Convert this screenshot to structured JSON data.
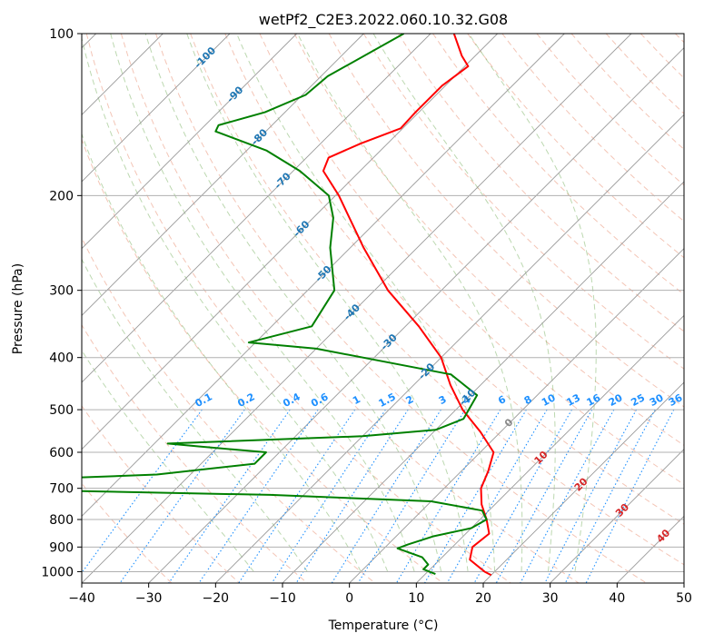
{
  "chart_data": {
    "type": "line",
    "title": "wetPf2_C2E3.2022.060.10.32.G08",
    "xlabel": "Temperature (°C)",
    "ylabel": "Pressure (hPa)",
    "xlim": [
      -40,
      50
    ],
    "ylim": [
      1050,
      100
    ],
    "y_scale": "log",
    "grid": true,
    "x_ticks": [
      -40,
      -30,
      -20,
      -10,
      0,
      10,
      20,
      30,
      40,
      50
    ],
    "y_ticks": [
      100,
      200,
      300,
      400,
      500,
      600,
      700,
      800,
      900,
      1000
    ],
    "skew_deg": 45,
    "colors": {
      "temperature": "#ff0000",
      "dewpoint": "#008000",
      "dry_adiabats": "#e9967a",
      "moist_adiabats": "#6aa84f",
      "mixing_ratio": "#1e90ff",
      "isotherm_labels": "#1f77b4",
      "isotherms": "#999999"
    },
    "mixing_ratio_labels": [
      "0.1",
      "0.2",
      "0.4",
      "0.6",
      "1",
      "1.5",
      "2",
      "3",
      "4",
      "6",
      "8",
      "10",
      "13",
      "16",
      "20",
      "25",
      "30",
      "36"
    ],
    "mixing_ratio_values": [
      0.1,
      0.2,
      0.4,
      0.6,
      1,
      1.5,
      2,
      3,
      4,
      6,
      8,
      10,
      13,
      16,
      20,
      25,
      30,
      36
    ],
    "mixing_ratio_label_pressure": 500,
    "isotherm_labels": [
      "-100",
      "-90",
      "-80",
      "-70",
      "-60",
      "-50",
      "-40",
      "-30",
      "-20",
      "-10"
    ],
    "isotherm_label_values": [
      -100,
      -90,
      -80,
      -70,
      -60,
      -50,
      -40,
      -30,
      -20,
      -10
    ],
    "isotherm_label_pressures": [
      111,
      130,
      156,
      188,
      231,
      280,
      330,
      375,
      425,
      475
    ],
    "freezing_label": "0",
    "freezing_label_pressure": 530,
    "warm_isotherm_labels": [
      "10",
      "20",
      "30",
      "40"
    ],
    "warm_isotherm_values": [
      10,
      20,
      30,
      40
    ],
    "warm_isotherm_label_pressures": [
      615,
      690,
      770,
      860
    ],
    "dry_adiabat_thetas_c": [
      -30,
      -20,
      -10,
      0,
      10,
      20,
      30,
      40,
      50,
      60,
      70,
      80,
      90,
      100,
      110,
      120,
      130,
      140,
      150,
      160,
      170,
      180,
      190,
      200
    ],
    "moist_adiabat_start_c": [
      -16,
      -8,
      0,
      4,
      8,
      12,
      16,
      20,
      24,
      28,
      32
    ],
    "series": [
      {
        "name": "temperature",
        "points": [
          {
            "p": 100,
            "t": -66.5
          },
          {
            "p": 110,
            "t": -62.0
          },
          {
            "p": 115,
            "t": -59.5
          },
          {
            "p": 125,
            "t": -60.5
          },
          {
            "p": 140,
            "t": -60.5
          },
          {
            "p": 150,
            "t": -60.3
          },
          {
            "p": 160,
            "t": -64.0
          },
          {
            "p": 170,
            "t": -66.7
          },
          {
            "p": 180,
            "t": -65.5
          },
          {
            "p": 200,
            "t": -59.5
          },
          {
            "p": 250,
            "t": -48.0
          },
          {
            "p": 300,
            "t": -38.0
          },
          {
            "p": 350,
            "t": -28.0
          },
          {
            "p": 400,
            "t": -20.0
          },
          {
            "p": 450,
            "t": -14.5
          },
          {
            "p": 500,
            "t": -9.0
          },
          {
            "p": 550,
            "t": -3.0
          },
          {
            "p": 600,
            "t": 2.0
          },
          {
            "p": 650,
            "t": 4.0
          },
          {
            "p": 700,
            "t": 5.5
          },
          {
            "p": 750,
            "t": 8.0
          },
          {
            "p": 800,
            "t": 11.0
          },
          {
            "p": 850,
            "t": 13.5
          },
          {
            "p": 900,
            "t": 13.0
          },
          {
            "p": 950,
            "t": 14.5
          },
          {
            "p": 1000,
            "t": 18.5
          },
          {
            "p": 1015,
            "t": 20.0
          }
        ]
      },
      {
        "name": "dewpoint",
        "points": [
          {
            "p": 100,
            "t": -74.0
          },
          {
            "p": 120,
            "t": -79.0
          },
          {
            "p": 130,
            "t": -79.5
          },
          {
            "p": 140,
            "t": -83.0
          },
          {
            "p": 148,
            "t": -88.0
          },
          {
            "p": 152,
            "t": -87.5
          },
          {
            "p": 165,
            "t": -77.0
          },
          {
            "p": 180,
            "t": -69.0
          },
          {
            "p": 200,
            "t": -61.0
          },
          {
            "p": 220,
            "t": -57.0
          },
          {
            "p": 250,
            "t": -53.0
          },
          {
            "p": 300,
            "t": -46.0
          },
          {
            "p": 350,
            "t": -44.0
          },
          {
            "p": 375,
            "t": -51.0
          },
          {
            "p": 385,
            "t": -40.0
          },
          {
            "p": 430,
            "t": -16.0
          },
          {
            "p": 470,
            "t": -9.0
          },
          {
            "p": 520,
            "t": -7.5
          },
          {
            "p": 545,
            "t": -10.0
          },
          {
            "p": 560,
            "t": -20.0
          },
          {
            "p": 578,
            "t": -48.0
          },
          {
            "p": 585,
            "t": -43.0
          },
          {
            "p": 600,
            "t": -32.0
          },
          {
            "p": 630,
            "t": -32.0
          },
          {
            "p": 660,
            "t": -45.0
          },
          {
            "p": 680,
            "t": -72.0
          },
          {
            "p": 700,
            "t": -75.0
          },
          {
            "p": 720,
            "t": -25.0
          },
          {
            "p": 740,
            "t": 0.0
          },
          {
            "p": 770,
            "t": 9.0
          },
          {
            "p": 800,
            "t": 11.0
          },
          {
            "p": 830,
            "t": 10.0
          },
          {
            "p": 860,
            "t": 5.5
          },
          {
            "p": 890,
            "t": 3.0
          },
          {
            "p": 905,
            "t": 2.0
          },
          {
            "p": 940,
            "t": 7.0
          },
          {
            "p": 970,
            "t": 9.0
          },
          {
            "p": 990,
            "t": 9.0
          },
          {
            "p": 1010,
            "t": 11.5
          }
        ]
      }
    ]
  }
}
